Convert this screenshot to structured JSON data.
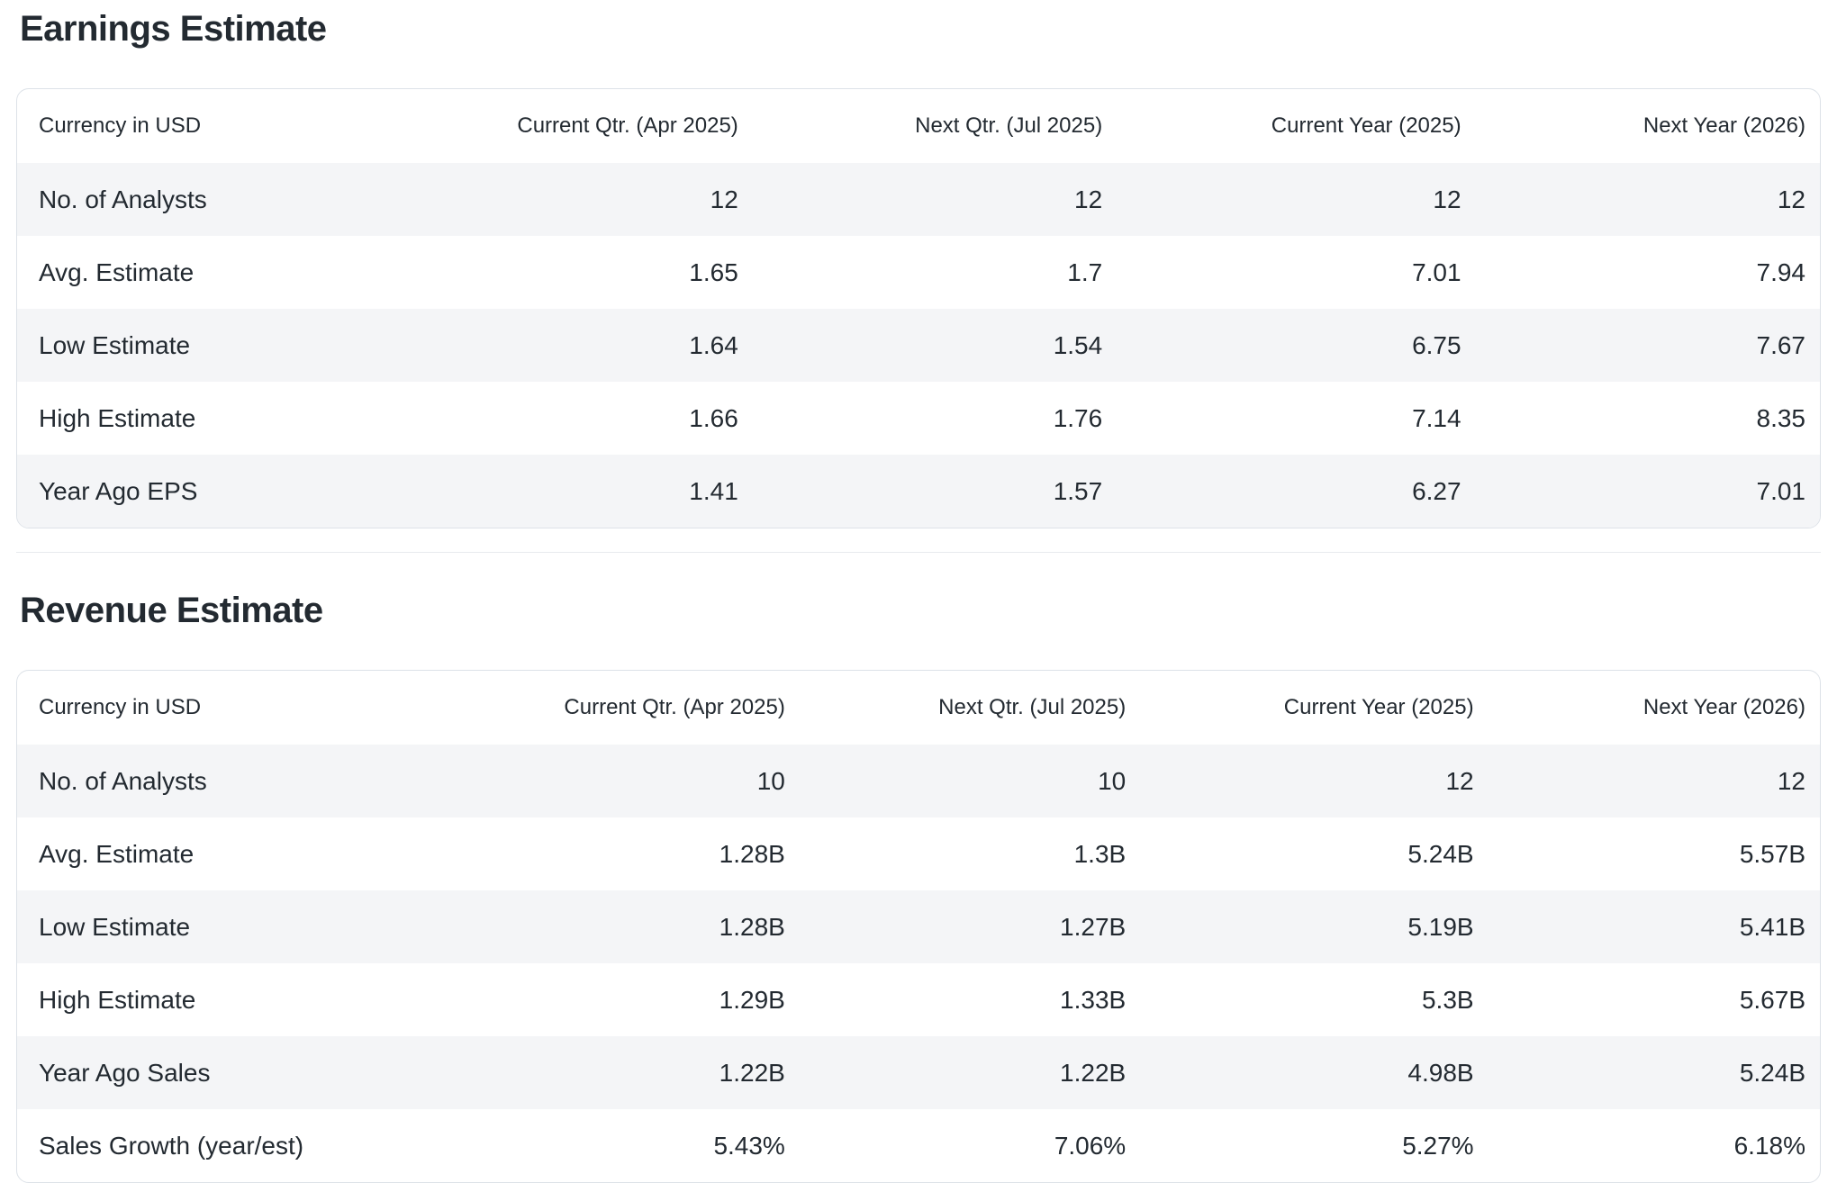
{
  "colors": {
    "title_text": "#232a31",
    "body_text": "#232a31",
    "row_stripe": "#f4f5f7",
    "card_border": "#dde2e8",
    "divider": "#e8eaee"
  },
  "sections": [
    {
      "title": "Earnings Estimate",
      "table": {
        "corner_label": "Currency in USD",
        "columns": [
          "Current Qtr. (Apr 2025)",
          "Next Qtr. (Jul 2025)",
          "Current Year (2025)",
          "Next Year (2026)"
        ],
        "rows": [
          {
            "label": "No. of Analysts",
            "values": [
              "12",
              "12",
              "12",
              "12"
            ]
          },
          {
            "label": "Avg. Estimate",
            "values": [
              "1.65",
              "1.7",
              "7.01",
              "7.94"
            ]
          },
          {
            "label": "Low Estimate",
            "values": [
              "1.64",
              "1.54",
              "6.75",
              "7.67"
            ]
          },
          {
            "label": "High Estimate",
            "values": [
              "1.66",
              "1.76",
              "7.14",
              "8.35"
            ]
          },
          {
            "label": "Year Ago EPS",
            "values": [
              "1.41",
              "1.57",
              "6.27",
              "7.01"
            ]
          }
        ]
      }
    },
    {
      "title": "Revenue Estimate",
      "table": {
        "corner_label": "Currency in USD",
        "columns": [
          "Current Qtr. (Apr 2025)",
          "Next Qtr. (Jul 2025)",
          "Current Year (2025)",
          "Next Year (2026)"
        ],
        "rows": [
          {
            "label": "No. of Analysts",
            "values": [
              "10",
              "10",
              "12",
              "12"
            ]
          },
          {
            "label": "Avg. Estimate",
            "values": [
              "1.28B",
              "1.3B",
              "5.24B",
              "5.57B"
            ]
          },
          {
            "label": "Low Estimate",
            "values": [
              "1.28B",
              "1.27B",
              "5.19B",
              "5.41B"
            ]
          },
          {
            "label": "High Estimate",
            "values": [
              "1.29B",
              "1.33B",
              "5.3B",
              "5.67B"
            ]
          },
          {
            "label": "Year Ago Sales",
            "values": [
              "1.22B",
              "1.22B",
              "4.98B",
              "5.24B"
            ]
          },
          {
            "label": "Sales Growth (year/est)",
            "values": [
              "5.43%",
              "7.06%",
              "5.27%",
              "6.18%"
            ]
          }
        ]
      }
    }
  ]
}
